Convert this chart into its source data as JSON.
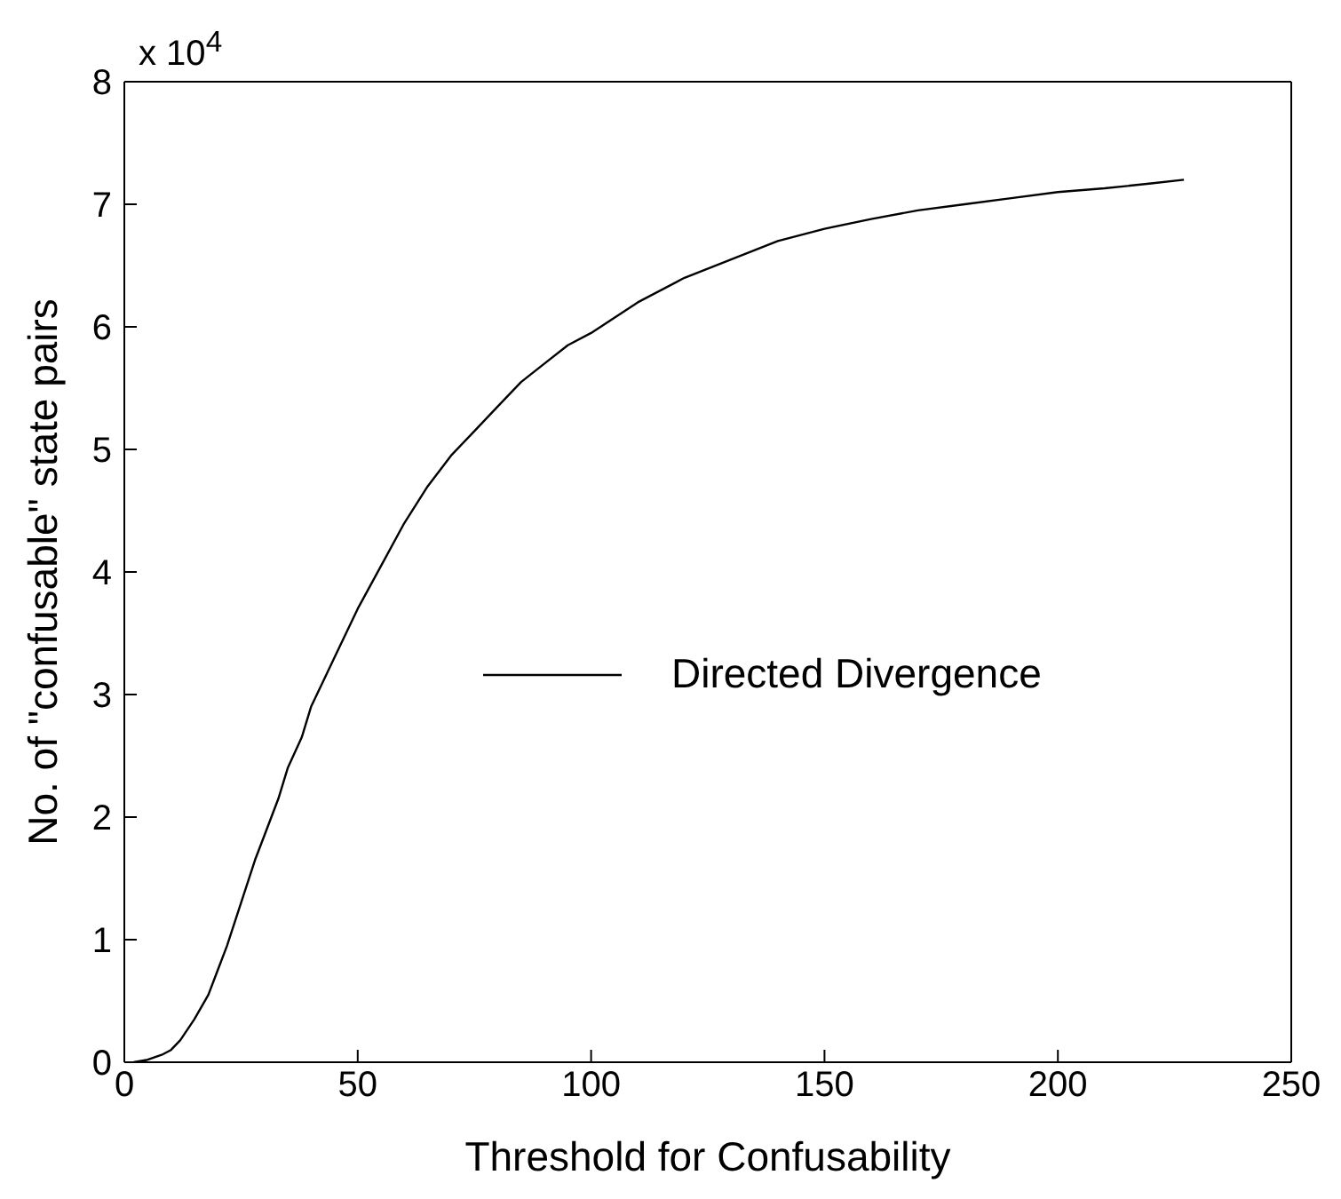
{
  "chart_data": {
    "type": "line",
    "xlabel": "Threshold for Confusability",
    "ylabel": "No. of \"confusable\" state pairs",
    "annotations": [
      "x 10$^{4}$"
    ],
    "x": [
      2,
      5,
      8,
      10,
      12,
      15,
      18,
      20,
      22,
      25,
      28,
      30,
      33,
      35,
      38,
      40,
      45,
      50,
      55,
      60,
      65,
      70,
      75,
      80,
      85,
      90,
      95,
      100,
      110,
      120,
      130,
      140,
      150,
      160,
      170,
      180,
      190,
      200,
      210,
      220,
      227
    ],
    "series": [
      {
        "name": "Directed Divergence",
        "color": "#000000",
        "values": [
          0,
          0.02,
          0.06,
          0.1,
          0.18,
          0.35,
          0.55,
          0.75,
          0.95,
          1.3,
          1.65,
          1.85,
          2.15,
          2.4,
          2.65,
          2.9,
          3.3,
          3.7,
          4.05,
          4.4,
          4.7,
          4.95,
          5.15,
          5.35,
          5.55,
          5.7,
          5.85,
          5.95,
          6.2,
          6.4,
          6.55,
          6.7,
          6.8,
          6.88,
          6.95,
          7.0,
          7.05,
          7.1,
          7.13,
          7.17,
          7.2
        ]
      }
    ],
    "xlim": [
      0,
      250
    ],
    "xticks": [
      0,
      50,
      100,
      150,
      200,
      250
    ],
    "ylim": [
      0,
      8
    ],
    "yticks": [
      0,
      1,
      2,
      3,
      4,
      5,
      6,
      7,
      8
    ],
    "grid": false,
    "legend": "right",
    "marker": "none",
    "line_style": "solid"
  }
}
